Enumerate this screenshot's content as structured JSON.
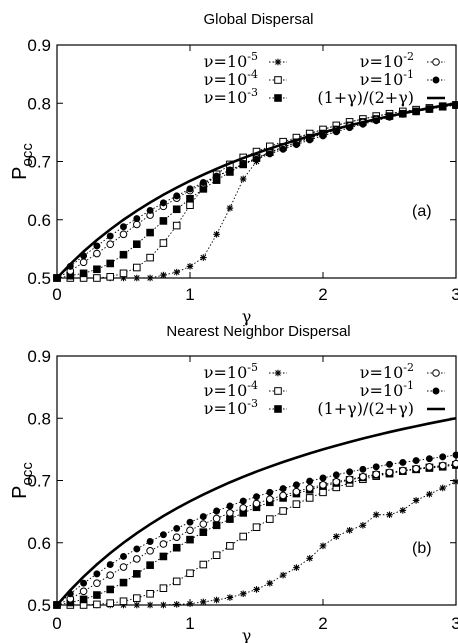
{
  "chart_data": [
    {
      "type": "line",
      "title": "Global Dispersal",
      "xlabel": "γ",
      "ylabel": "P",
      "ylabel_sub": "occ",
      "xlim": [
        0,
        3
      ],
      "ylim": [
        0.5,
        0.9
      ],
      "xticks": [
        "0",
        "1",
        "2",
        "3"
      ],
      "yticks": [
        "0.5",
        "0.6",
        "0.7",
        "0.8",
        "0.9"
      ],
      "annotation": "(a)",
      "legend_placement": "top-right",
      "series": [
        {
          "name": "ν=10-5",
          "label_base": "ν=10",
          "label_exp": "-5",
          "marker": "star",
          "style": "dotted",
          "x": [
            0,
            0.1,
            0.2,
            0.3,
            0.4,
            0.5,
            0.6,
            0.7,
            0.8,
            0.9,
            1.0,
            1.1,
            1.2,
            1.3,
            1.4,
            1.5,
            1.6,
            1.7,
            1.8,
            1.9,
            2.0,
            2.1,
            2.2,
            2.3,
            2.4,
            2.5,
            2.6,
            2.7,
            2.8,
            2.9,
            3.0
          ],
          "y": [
            0.5,
            0.5,
            0.5,
            0.5,
            0.5,
            0.5,
            0.5,
            0.5,
            0.505,
            0.51,
            0.52,
            0.535,
            0.575,
            0.62,
            0.67,
            0.7,
            0.72,
            0.73,
            0.74,
            0.748,
            0.755,
            0.762,
            0.768,
            0.773,
            0.778,
            0.782,
            0.786,
            0.789,
            0.792,
            0.795,
            0.797
          ]
        },
        {
          "name": "ν=10-4",
          "label_base": "ν=10",
          "label_exp": "-4",
          "marker": "open-square",
          "style": "dotted",
          "x": [
            0,
            0.1,
            0.2,
            0.3,
            0.4,
            0.5,
            0.6,
            0.7,
            0.8,
            0.9,
            1.0,
            1.1,
            1.2,
            1.3,
            1.4,
            1.5,
            1.6,
            1.7,
            1.8,
            1.9,
            2.0,
            2.1,
            2.2,
            2.3,
            2.4,
            2.5,
            2.6,
            2.7,
            2.8,
            2.9,
            3.0
          ],
          "y": [
            0.5,
            0.5,
            0.5,
            0.5,
            0.502,
            0.508,
            0.518,
            0.535,
            0.56,
            0.59,
            0.625,
            0.655,
            0.678,
            0.695,
            0.707,
            0.717,
            0.726,
            0.734,
            0.741,
            0.748,
            0.755,
            0.762,
            0.768,
            0.773,
            0.778,
            0.782,
            0.786,
            0.789,
            0.792,
            0.795,
            0.797
          ]
        },
        {
          "name": "ν=10-3",
          "label_base": "ν=10",
          "label_exp": "-3",
          "marker": "filled-square",
          "style": "dotted",
          "x": [
            0,
            0.1,
            0.2,
            0.3,
            0.4,
            0.5,
            0.6,
            0.7,
            0.8,
            0.9,
            1.0,
            1.1,
            1.2,
            1.3,
            1.4,
            1.5,
            1.6,
            1.7,
            1.8,
            1.9,
            2.0,
            2.1,
            2.2,
            2.3,
            2.4,
            2.5,
            2.6,
            2.7,
            2.8,
            2.9,
            3.0
          ],
          "y": [
            0.5,
            0.504,
            0.508,
            0.515,
            0.525,
            0.54,
            0.558,
            0.578,
            0.598,
            0.618,
            0.636,
            0.653,
            0.668,
            0.682,
            0.695,
            0.706,
            0.716,
            0.725,
            0.733,
            0.741,
            0.748,
            0.755,
            0.762,
            0.768,
            0.773,
            0.778,
            0.782,
            0.786,
            0.79,
            0.794,
            0.797
          ]
        },
        {
          "name": "ν=10-2",
          "label_base": "ν=10",
          "label_exp": "-2",
          "marker": "open-circle",
          "style": "dotted",
          "x": [
            0,
            0.1,
            0.2,
            0.3,
            0.4,
            0.5,
            0.6,
            0.7,
            0.8,
            0.9,
            1.0,
            1.1,
            1.2,
            1.3,
            1.4,
            1.5,
            1.6,
            1.7,
            1.8,
            1.9,
            2.0,
            2.1,
            2.2,
            2.3,
            2.4,
            2.5,
            2.6,
            2.7,
            2.8,
            2.9,
            3.0
          ],
          "y": [
            0.5,
            0.512,
            0.527,
            0.542,
            0.558,
            0.575,
            0.592,
            0.608,
            0.623,
            0.637,
            0.65,
            0.662,
            0.674,
            0.685,
            0.696,
            0.706,
            0.715,
            0.724,
            0.732,
            0.74,
            0.747,
            0.754,
            0.761,
            0.767,
            0.772,
            0.777,
            0.782,
            0.786,
            0.79,
            0.794,
            0.797
          ]
        },
        {
          "name": "ν=10-1",
          "label_base": "ν=10",
          "label_exp": "-1",
          "marker": "filled-circle",
          "style": "dotted",
          "x": [
            0,
            0.1,
            0.2,
            0.3,
            0.4,
            0.5,
            0.6,
            0.7,
            0.8,
            0.9,
            1.0,
            1.1,
            1.2,
            1.3,
            1.4,
            1.5,
            1.6,
            1.7,
            1.8,
            1.9,
            2.0,
            2.1,
            2.2,
            2.3,
            2.4,
            2.5,
            2.6,
            2.7,
            2.8,
            2.9,
            3.0
          ],
          "y": [
            0.5,
            0.52,
            0.538,
            0.555,
            0.572,
            0.588,
            0.602,
            0.616,
            0.629,
            0.641,
            0.653,
            0.664,
            0.675,
            0.685,
            0.695,
            0.704,
            0.713,
            0.721,
            0.729,
            0.737,
            0.744,
            0.751,
            0.758,
            0.764,
            0.77,
            0.776,
            0.781,
            0.786,
            0.79,
            0.794,
            0.797
          ]
        },
        {
          "name": "(1+γ)/(2+γ)",
          "label_base": "(1+γ)/(2+γ)",
          "label_exp": "",
          "marker": "none",
          "style": "solid",
          "x": [
            0,
            0.1,
            0.2,
            0.3,
            0.4,
            0.5,
            0.6,
            0.7,
            0.8,
            0.9,
            1.0,
            1.1,
            1.2,
            1.3,
            1.4,
            1.5,
            1.6,
            1.7,
            1.8,
            1.9,
            2.0,
            2.1,
            2.2,
            2.3,
            2.4,
            2.5,
            2.6,
            2.7,
            2.8,
            2.9,
            3.0
          ],
          "y": [
            0.5,
            0.5238,
            0.5455,
            0.5652,
            0.5833,
            0.6,
            0.6154,
            0.6296,
            0.6429,
            0.6552,
            0.6667,
            0.6774,
            0.6875,
            0.697,
            0.7059,
            0.7143,
            0.7222,
            0.7297,
            0.7368,
            0.7436,
            0.75,
            0.7561,
            0.7619,
            0.7674,
            0.7727,
            0.7778,
            0.7826,
            0.7872,
            0.7917,
            0.7959,
            0.8
          ]
        }
      ]
    },
    {
      "type": "line",
      "title": "Nearest Neighbor Dispersal",
      "xlabel": "γ",
      "ylabel": "P",
      "ylabel_sub": "occ",
      "xlim": [
        0,
        3
      ],
      "ylim": [
        0.5,
        0.9
      ],
      "xticks": [
        "0",
        "1",
        "2",
        "3"
      ],
      "yticks": [
        "0.5",
        "0.6",
        "0.7",
        "0.8",
        "0.9"
      ],
      "annotation": "(b)",
      "legend_placement": "top-right",
      "series": [
        {
          "name": "ν=10-5",
          "label_base": "ν=10",
          "label_exp": "-5",
          "marker": "star",
          "style": "dotted",
          "x": [
            0,
            0.1,
            0.2,
            0.3,
            0.4,
            0.5,
            0.6,
            0.7,
            0.8,
            0.9,
            1.0,
            1.1,
            1.2,
            1.3,
            1.4,
            1.5,
            1.6,
            1.7,
            1.8,
            1.9,
            2.0,
            2.1,
            2.2,
            2.3,
            2.4,
            2.5,
            2.6,
            2.7,
            2.8,
            2.9,
            3.0
          ],
          "y": [
            0.5,
            0.5,
            0.5,
            0.5,
            0.5,
            0.5,
            0.5,
            0.5,
            0.5,
            0.501,
            0.502,
            0.505,
            0.508,
            0.512,
            0.518,
            0.525,
            0.535,
            0.548,
            0.56,
            0.575,
            0.595,
            0.61,
            0.62,
            0.628,
            0.645,
            0.645,
            0.652,
            0.668,
            0.678,
            0.688,
            0.698
          ]
        },
        {
          "name": "ν=10-4",
          "label_base": "ν=10",
          "label_exp": "-4",
          "marker": "open-square",
          "style": "dotted",
          "x": [
            0,
            0.1,
            0.2,
            0.3,
            0.4,
            0.5,
            0.6,
            0.7,
            0.8,
            0.9,
            1.0,
            1.1,
            1.2,
            1.3,
            1.4,
            1.5,
            1.6,
            1.7,
            1.8,
            1.9,
            2.0,
            2.1,
            2.2,
            2.3,
            2.4,
            2.5,
            2.6,
            2.7,
            2.8,
            2.9,
            3.0
          ],
          "y": [
            0.5,
            0.5,
            0.5,
            0.501,
            0.503,
            0.506,
            0.511,
            0.518,
            0.527,
            0.538,
            0.551,
            0.565,
            0.58,
            0.595,
            0.61,
            0.625,
            0.638,
            0.651,
            0.662,
            0.672,
            0.681,
            0.689,
            0.696,
            0.702,
            0.707,
            0.711,
            0.715,
            0.718,
            0.721,
            0.723,
            0.725
          ]
        },
        {
          "name": "ν=10-3",
          "label_base": "ν=10",
          "label_exp": "-3",
          "marker": "filled-square",
          "style": "dotted",
          "x": [
            0,
            0.1,
            0.2,
            0.3,
            0.4,
            0.5,
            0.6,
            0.7,
            0.8,
            0.9,
            1.0,
            1.1,
            1.2,
            1.3,
            1.4,
            1.5,
            1.6,
            1.7,
            1.8,
            1.9,
            2.0,
            2.1,
            2.2,
            2.3,
            2.4,
            2.5,
            2.6,
            2.7,
            2.8,
            2.9,
            3.0
          ],
          "y": [
            0.5,
            0.504,
            0.509,
            0.516,
            0.525,
            0.536,
            0.55,
            0.564,
            0.578,
            0.592,
            0.605,
            0.617,
            0.628,
            0.638,
            0.648,
            0.657,
            0.665,
            0.672,
            0.679,
            0.685,
            0.691,
            0.696,
            0.701,
            0.705,
            0.709,
            0.712,
            0.715,
            0.718,
            0.72,
            0.722,
            0.725
          ]
        },
        {
          "name": "ν=10-2",
          "label_base": "ν=10",
          "label_exp": "-2",
          "marker": "open-circle",
          "style": "dotted",
          "x": [
            0,
            0.1,
            0.2,
            0.3,
            0.4,
            0.5,
            0.6,
            0.7,
            0.8,
            0.9,
            1.0,
            1.1,
            1.2,
            1.3,
            1.4,
            1.5,
            1.6,
            1.7,
            1.8,
            1.9,
            2.0,
            2.1,
            2.2,
            2.3,
            2.4,
            2.5,
            2.6,
            2.7,
            2.8,
            2.9,
            3.0
          ],
          "y": [
            0.5,
            0.51,
            0.522,
            0.535,
            0.548,
            0.561,
            0.574,
            0.587,
            0.598,
            0.609,
            0.62,
            0.63,
            0.639,
            0.648,
            0.656,
            0.663,
            0.67,
            0.676,
            0.682,
            0.688,
            0.693,
            0.698,
            0.702,
            0.706,
            0.71,
            0.713,
            0.716,
            0.719,
            0.722,
            0.724,
            0.727
          ]
        },
        {
          "name": "ν=10-1",
          "label_base": "ν=10",
          "label_exp": "-1",
          "marker": "filled-circle",
          "style": "dotted",
          "x": [
            0,
            0.1,
            0.2,
            0.3,
            0.4,
            0.5,
            0.6,
            0.7,
            0.8,
            0.9,
            1.0,
            1.1,
            1.2,
            1.3,
            1.4,
            1.5,
            1.6,
            1.7,
            1.8,
            1.9,
            2.0,
            2.1,
            2.2,
            2.3,
            2.4,
            2.5,
            2.6,
            2.7,
            2.8,
            2.9,
            3.0
          ],
          "y": [
            0.5,
            0.518,
            0.535,
            0.55,
            0.565,
            0.578,
            0.59,
            0.602,
            0.613,
            0.623,
            0.633,
            0.642,
            0.651,
            0.659,
            0.667,
            0.674,
            0.681,
            0.687,
            0.693,
            0.699,
            0.704,
            0.709,
            0.714,
            0.718,
            0.722,
            0.726,
            0.729,
            0.732,
            0.735,
            0.738,
            0.741
          ]
        },
        {
          "name": "(1+γ)/(2+γ)",
          "label_base": "(1+γ)/(2+γ)",
          "label_exp": "",
          "marker": "none",
          "style": "solid",
          "x": [
            0,
            0.1,
            0.2,
            0.3,
            0.4,
            0.5,
            0.6,
            0.7,
            0.8,
            0.9,
            1.0,
            1.1,
            1.2,
            1.3,
            1.4,
            1.5,
            1.6,
            1.7,
            1.8,
            1.9,
            2.0,
            2.1,
            2.2,
            2.3,
            2.4,
            2.5,
            2.6,
            2.7,
            2.8,
            2.9,
            3.0
          ],
          "y": [
            0.5,
            0.5238,
            0.5455,
            0.5652,
            0.5833,
            0.6,
            0.6154,
            0.6296,
            0.6429,
            0.6552,
            0.6667,
            0.6774,
            0.6875,
            0.697,
            0.7059,
            0.7143,
            0.7222,
            0.7297,
            0.7368,
            0.7436,
            0.75,
            0.7561,
            0.7619,
            0.7674,
            0.7727,
            0.7778,
            0.7826,
            0.7872,
            0.7917,
            0.7959,
            0.8
          ]
        }
      ]
    }
  ]
}
